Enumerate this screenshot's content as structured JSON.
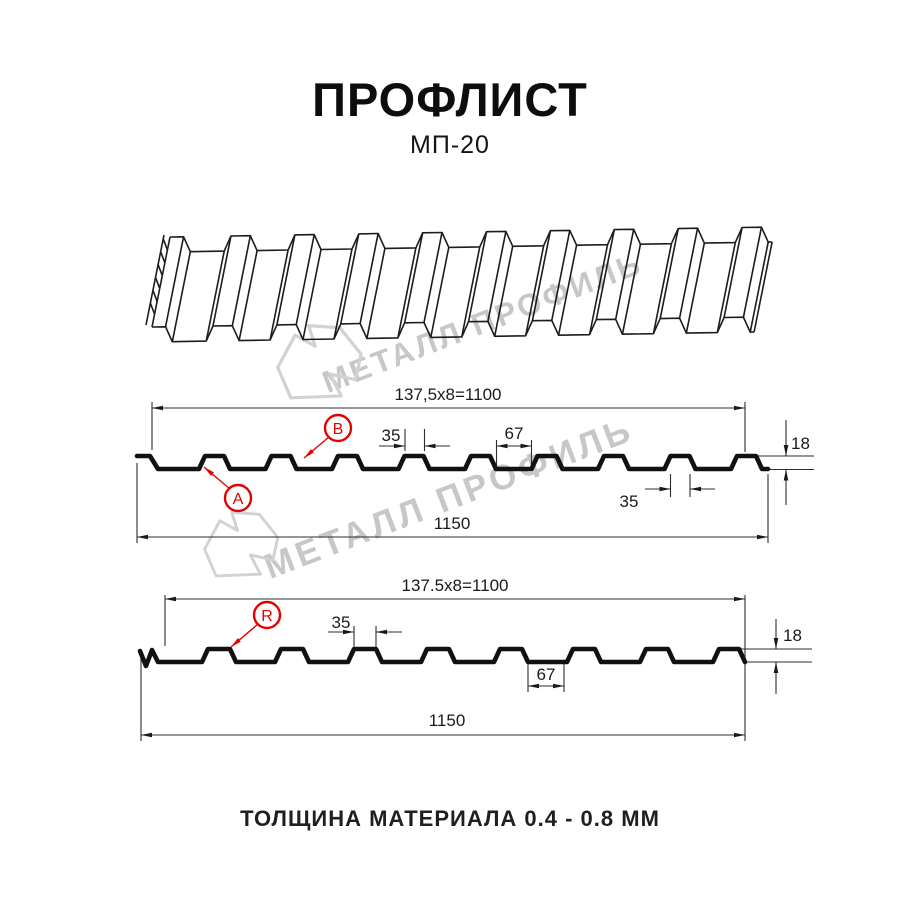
{
  "header": {
    "title": "ПРОФЛИСТ",
    "subtitle": "МП-20"
  },
  "caption": "ТОЛЩИНА МАТЕРИАЛА 0.4 - 0.8 ММ",
  "watermark": {
    "brand": "МЕТАЛЛ ПРОФИЛЬ"
  },
  "colors": {
    "accent_red": "#e60000",
    "line_dark": "#1a1a1a",
    "watermark_gray": "#c7c7c7"
  },
  "section_a": {
    "working_width": "137,5x8=1100",
    "rib_top_width": "35",
    "flat_width": "67",
    "profile_height": "18",
    "rib_top_width_2": "35",
    "full_width": "1150",
    "point_label_a": "A",
    "point_label_b": "B"
  },
  "section_r": {
    "working_width": "137.5x8=1100",
    "rib_top_width": "35",
    "flat_width": "67",
    "profile_height": "18",
    "full_width": "1150",
    "point_label_r": "R"
  }
}
